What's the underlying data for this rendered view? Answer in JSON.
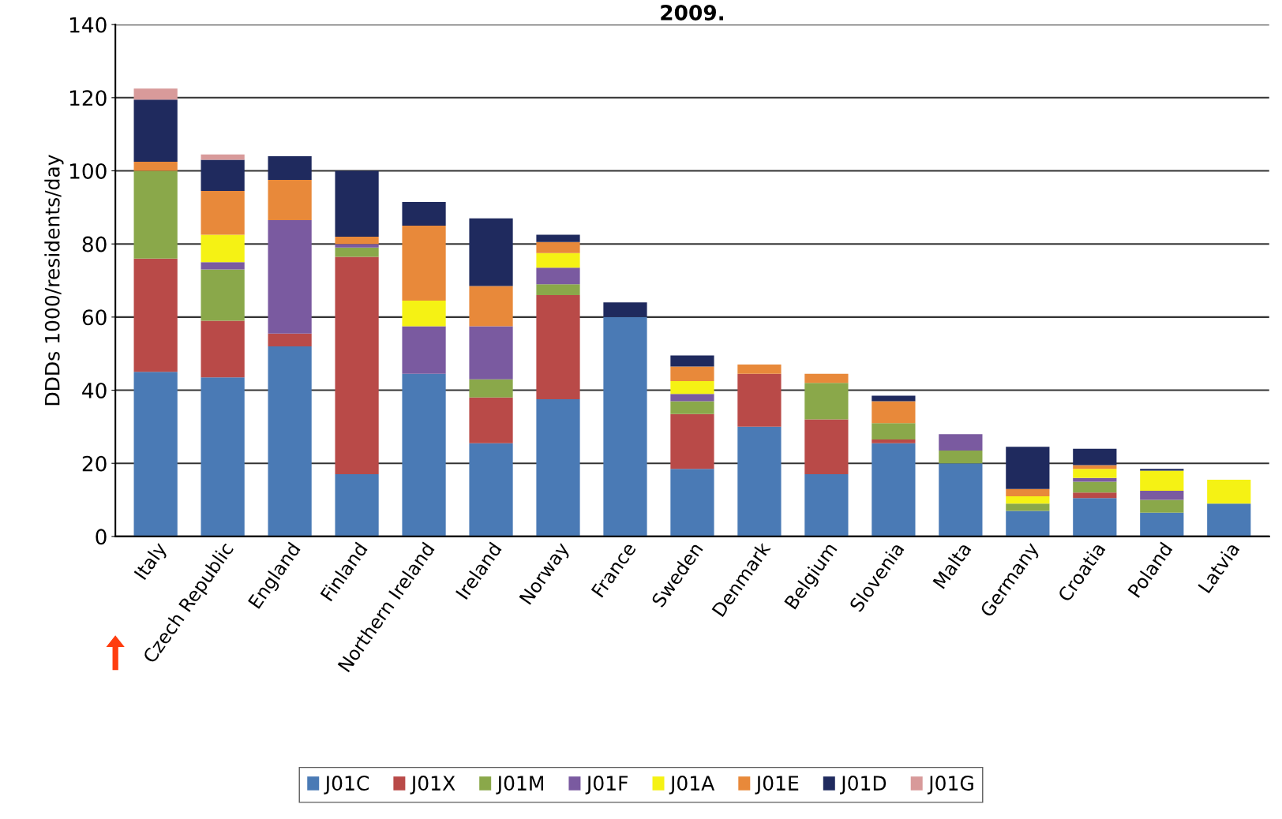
{
  "chart_data": {
    "type": "bar",
    "title": "2009.",
    "ylabel": "DDDs 1000/residents/day",
    "categories": [
      "Italy",
      "Czech Republic",
      "England",
      "Finland",
      "Northern Ireland",
      "Ireland",
      "Norway",
      "France",
      "Sweden",
      "Denmark",
      "Belgium",
      "Slovenia",
      "Malta",
      "Germany",
      "Croatia",
      "Poland",
      "Latvia"
    ],
    "stacked": true,
    "series": [
      {
        "name": "J01C",
        "color": "#4a7ab5",
        "values": [
          45,
          43.5,
          52,
          17,
          44.5,
          25.5,
          37.5,
          60,
          18.5,
          30,
          17,
          25.5,
          20,
          7,
          10.5,
          6.5,
          9
        ]
      },
      {
        "name": "J01X",
        "color": "#b94a48",
        "values": [
          31,
          15.5,
          3.5,
          59.5,
          0,
          12.5,
          28.5,
          0,
          15,
          14.5,
          15,
          1,
          0,
          0,
          1.5,
          0,
          0
        ]
      },
      {
        "name": "J01M",
        "color": "#8aa84a",
        "values": [
          24,
          14,
          0,
          2.5,
          0,
          5,
          3,
          0,
          3.5,
          0,
          10,
          4.5,
          3.5,
          2,
          3,
          3.5,
          0
        ]
      },
      {
        "name": "J01F",
        "color": "#7a5aa0",
        "values": [
          0,
          2,
          31,
          1,
          13,
          14.5,
          4.5,
          0,
          2,
          0,
          0,
          0,
          4.5,
          0,
          1,
          2.5,
          0
        ]
      },
      {
        "name": "J01A",
        "color": "#f5f214",
        "values": [
          0,
          7.5,
          0,
          0,
          7,
          0,
          4,
          0,
          3.5,
          0,
          0,
          0,
          0,
          2,
          2.5,
          5.5,
          6.5
        ]
      },
      {
        "name": "J01E",
        "color": "#e8893a",
        "values": [
          2.5,
          12,
          11,
          2,
          20.5,
          11,
          3,
          0,
          4,
          2.5,
          2.5,
          6,
          0,
          2,
          1,
          0,
          0
        ]
      },
      {
        "name": "J01D",
        "color": "#1f2a5e",
        "values": [
          17,
          8.5,
          6.5,
          18,
          6.5,
          18.5,
          2,
          4,
          3,
          0,
          0,
          1.5,
          0,
          11.5,
          4.5,
          0.5,
          0
        ]
      },
      {
        "name": "J01G",
        "color": "#d89a9a",
        "values": [
          3,
          1.5,
          0,
          0,
          0,
          0,
          0,
          0,
          0,
          0,
          0,
          0,
          0,
          0,
          0,
          0,
          0
        ]
      }
    ],
    "ylim": [
      0,
      140
    ],
    "yticks": [
      0,
      20,
      40,
      60,
      80,
      100,
      120,
      140
    ],
    "grid": "y",
    "legend": "bottom"
  }
}
